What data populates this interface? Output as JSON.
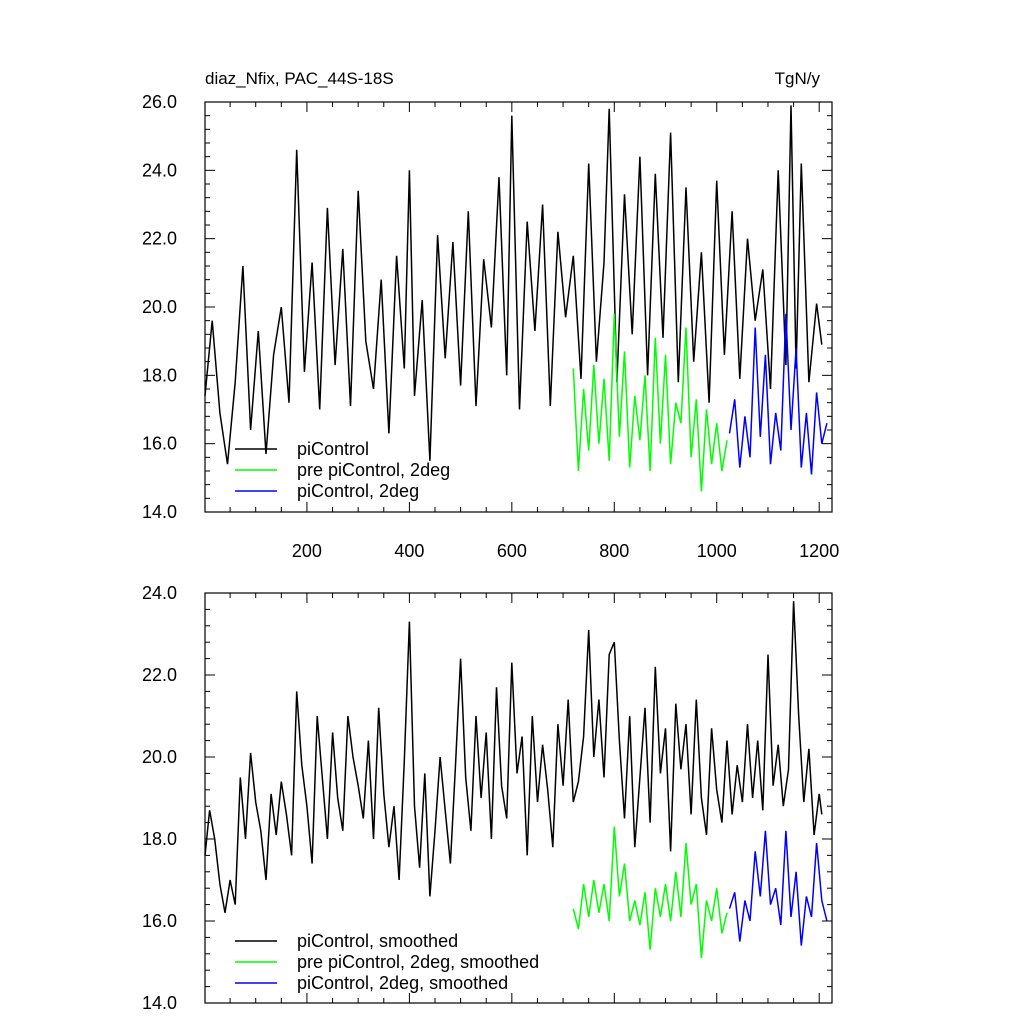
{
  "chart_data": [
    {
      "type": "line",
      "title": "diaz_Nfix, PAC_44S-18S",
      "units": "TgN/y",
      "xlabel": "",
      "ylabel": "",
      "xlim": [
        1,
        1225
      ],
      "ylim": [
        14.0,
        26.0
      ],
      "xticks": [
        200,
        400,
        600,
        800,
        1000,
        1200
      ],
      "xtick_labels": [
        "200",
        "400",
        "600",
        "800",
        "1000",
        "1200"
      ],
      "yticks": [
        14,
        16,
        18,
        20,
        22,
        24,
        26
      ],
      "ytick_labels": [
        "14.0",
        "16.0",
        "18.0",
        "20.0",
        "22.0",
        "24.0",
        "26.0"
      ],
      "legend_position": "bottom-left",
      "series": [
        {
          "name": "piControl",
          "color": "#000000",
          "x": [
            1,
            15,
            30,
            45,
            60,
            75,
            90,
            105,
            120,
            135,
            150,
            165,
            180,
            195,
            210,
            225,
            240,
            255,
            270,
            285,
            300,
            315,
            330,
            345,
            360,
            375,
            390,
            400,
            410,
            425,
            440,
            455,
            470,
            485,
            500,
            515,
            530,
            545,
            560,
            575,
            590,
            600,
            615,
            630,
            645,
            660,
            675,
            690,
            705,
            720,
            735,
            750,
            765,
            780,
            790,
            805,
            820,
            835,
            850,
            865,
            880,
            895,
            910,
            925,
            940,
            955,
            970,
            985,
            1000,
            1015,
            1030,
            1045,
            1060,
            1075,
            1090,
            1105,
            1120,
            1135,
            1145,
            1155,
            1165,
            1180,
            1195,
            1205
          ],
          "y": [
            17.4,
            19.6,
            16.9,
            15.4,
            17.8,
            21.2,
            16.4,
            19.3,
            15.7,
            18.6,
            20.0,
            17.2,
            24.6,
            18.1,
            21.3,
            17.0,
            22.9,
            18.3,
            21.7,
            17.1,
            23.4,
            19.0,
            17.6,
            20.8,
            16.3,
            21.5,
            18.2,
            24.0,
            17.4,
            20.2,
            15.5,
            22.1,
            18.5,
            21.9,
            17.7,
            22.8,
            17.1,
            21.4,
            19.4,
            23.8,
            18.0,
            25.6,
            17.0,
            22.5,
            19.3,
            23.0,
            17.1,
            22.2,
            19.7,
            21.5,
            17.9,
            24.2,
            18.4,
            21.3,
            25.8,
            17.8,
            23.3,
            19.2,
            24.4,
            18.0,
            23.9,
            19.1,
            25.1,
            17.8,
            23.5,
            18.4,
            21.6,
            17.2,
            23.7,
            18.6,
            22.8,
            17.9,
            22.0,
            19.6,
            21.1,
            17.6,
            24.0,
            18.3,
            25.9,
            18.2,
            24.2,
            17.8,
            20.1,
            18.9
          ]
        },
        {
          "name": "pre piControl, 2deg",
          "color": "#00ff00",
          "x": [
            720,
            730,
            740,
            750,
            760,
            770,
            780,
            790,
            800,
            810,
            820,
            830,
            840,
            850,
            860,
            870,
            880,
            890,
            900,
            910,
            920,
            930,
            940,
            950,
            960,
            970,
            980,
            990,
            1000,
            1010,
            1020
          ],
          "y": [
            18.2,
            15.2,
            17.6,
            15.8,
            18.3,
            16.0,
            17.9,
            15.5,
            19.8,
            16.2,
            18.7,
            15.3,
            17.4,
            16.1,
            18.0,
            15.2,
            19.1,
            16.0,
            18.6,
            15.4,
            17.2,
            16.6,
            19.4,
            15.6,
            17.3,
            14.6,
            17.0,
            15.4,
            16.6,
            15.2,
            16.1
          ]
        },
        {
          "name": "piControl, 2deg",
          "color": "#0000ff",
          "x": [
            1025,
            1035,
            1045,
            1055,
            1065,
            1075,
            1085,
            1095,
            1105,
            1115,
            1125,
            1135,
            1145,
            1155,
            1165,
            1175,
            1185,
            1195,
            1205,
            1215
          ],
          "y": [
            16.3,
            17.3,
            15.3,
            16.8,
            15.6,
            19.4,
            16.2,
            18.6,
            15.4,
            16.9,
            15.8,
            19.8,
            16.4,
            18.8,
            15.3,
            16.9,
            15.1,
            17.5,
            16.0,
            16.6
          ]
        }
      ]
    },
    {
      "type": "line",
      "title": "",
      "xlabel": "",
      "ylabel": "",
      "xlim": [
        1,
        1225
      ],
      "ylim": [
        14.0,
        24.0
      ],
      "xticks": [
        200,
        400,
        600,
        800,
        1000,
        1200
      ],
      "yticks": [
        14,
        16,
        18,
        20,
        22,
        24
      ],
      "ytick_labels": [
        "14.0",
        "16.0",
        "18.0",
        "20.0",
        "22.0",
        "24.0"
      ],
      "legend_position": "bottom-left",
      "series": [
        {
          "name": "piControl, smoothed",
          "color": "#000000",
          "x": [
            1,
            10,
            20,
            30,
            40,
            50,
            60,
            70,
            80,
            90,
            100,
            110,
            120,
            130,
            140,
            150,
            160,
            170,
            180,
            190,
            200,
            210,
            220,
            230,
            240,
            250,
            260,
            270,
            280,
            290,
            300,
            310,
            320,
            330,
            340,
            350,
            360,
            370,
            380,
            390,
            400,
            410,
            420,
            430,
            440,
            450,
            460,
            470,
            480,
            490,
            500,
            510,
            520,
            530,
            540,
            550,
            560,
            570,
            580,
            590,
            600,
            610,
            620,
            630,
            640,
            650,
            660,
            670,
            680,
            690,
            700,
            710,
            720,
            730,
            740,
            750,
            760,
            770,
            780,
            790,
            800,
            810,
            820,
            830,
            840,
            850,
            860,
            870,
            880,
            890,
            900,
            910,
            920,
            930,
            940,
            950,
            960,
            970,
            980,
            990,
            1000,
            1010,
            1020,
            1030,
            1040,
            1050,
            1060,
            1070,
            1080,
            1090,
            1100,
            1110,
            1120,
            1130,
            1140,
            1150,
            1160,
            1170,
            1180,
            1190,
            1200,
            1205
          ],
          "y": [
            17.6,
            18.7,
            18.0,
            16.9,
            16.2,
            17.0,
            16.4,
            19.5,
            18.0,
            20.1,
            18.9,
            18.2,
            17.0,
            19.1,
            18.1,
            19.4,
            18.6,
            17.6,
            21.6,
            19.8,
            18.8,
            17.4,
            21.0,
            19.5,
            18.0,
            20.6,
            19.0,
            18.2,
            21.0,
            20.0,
            19.3,
            18.5,
            20.4,
            18.0,
            21.2,
            19.1,
            17.8,
            18.8,
            17.0,
            19.9,
            23.3,
            18.8,
            17.3,
            19.6,
            16.6,
            18.2,
            20.0,
            18.7,
            17.4,
            19.8,
            22.4,
            19.5,
            18.2,
            21.0,
            19.0,
            20.6,
            18.0,
            21.7,
            19.3,
            18.5,
            22.3,
            19.6,
            20.5,
            17.6,
            21.0,
            18.9,
            20.3,
            19.2,
            17.8,
            20.8,
            19.3,
            21.4,
            18.9,
            19.4,
            20.5,
            23.1,
            20.0,
            21.4,
            19.5,
            22.5,
            22.8,
            20.4,
            18.5,
            21.0,
            17.8,
            19.5,
            21.2,
            18.4,
            22.2,
            19.6,
            20.7,
            17.7,
            21.3,
            19.7,
            20.8,
            18.6,
            21.4,
            19.0,
            18.1,
            20.7,
            19.2,
            18.4,
            20.4,
            18.6,
            19.8,
            18.9,
            20.8,
            19.0,
            20.4,
            18.7,
            22.5,
            19.3,
            20.3,
            18.8,
            19.7,
            23.8,
            21.0,
            18.9,
            20.2,
            18.1,
            19.1,
            18.6
          ]
        },
        {
          "name": "pre piControl, 2deg, smoothed",
          "color": "#00ff00",
          "x": [
            720,
            730,
            740,
            750,
            760,
            770,
            780,
            790,
            800,
            810,
            820,
            830,
            840,
            850,
            860,
            870,
            880,
            890,
            900,
            910,
            920,
            930,
            940,
            950,
            960,
            970,
            980,
            990,
            1000,
            1010,
            1020
          ],
          "y": [
            16.3,
            15.8,
            16.9,
            16.1,
            17.0,
            16.2,
            16.9,
            16.0,
            18.3,
            16.6,
            17.4,
            16.0,
            16.5,
            15.9,
            16.7,
            15.3,
            16.8,
            16.1,
            16.9,
            16.0,
            17.2,
            16.1,
            17.9,
            16.4,
            16.9,
            15.1,
            16.5,
            16.0,
            16.8,
            15.7,
            16.2
          ]
        },
        {
          "name": "piControl, 2deg, smoothed",
          "color": "#0000ff",
          "x": [
            1025,
            1035,
            1045,
            1055,
            1065,
            1075,
            1085,
            1095,
            1105,
            1115,
            1125,
            1135,
            1145,
            1155,
            1165,
            1175,
            1185,
            1195,
            1205,
            1215
          ],
          "y": [
            16.3,
            16.7,
            15.5,
            16.5,
            16.0,
            17.7,
            16.6,
            18.2,
            16.4,
            16.8,
            15.9,
            18.2,
            16.1,
            17.2,
            15.4,
            16.6,
            16.1,
            17.9,
            16.5,
            16.0
          ]
        }
      ]
    }
  ]
}
